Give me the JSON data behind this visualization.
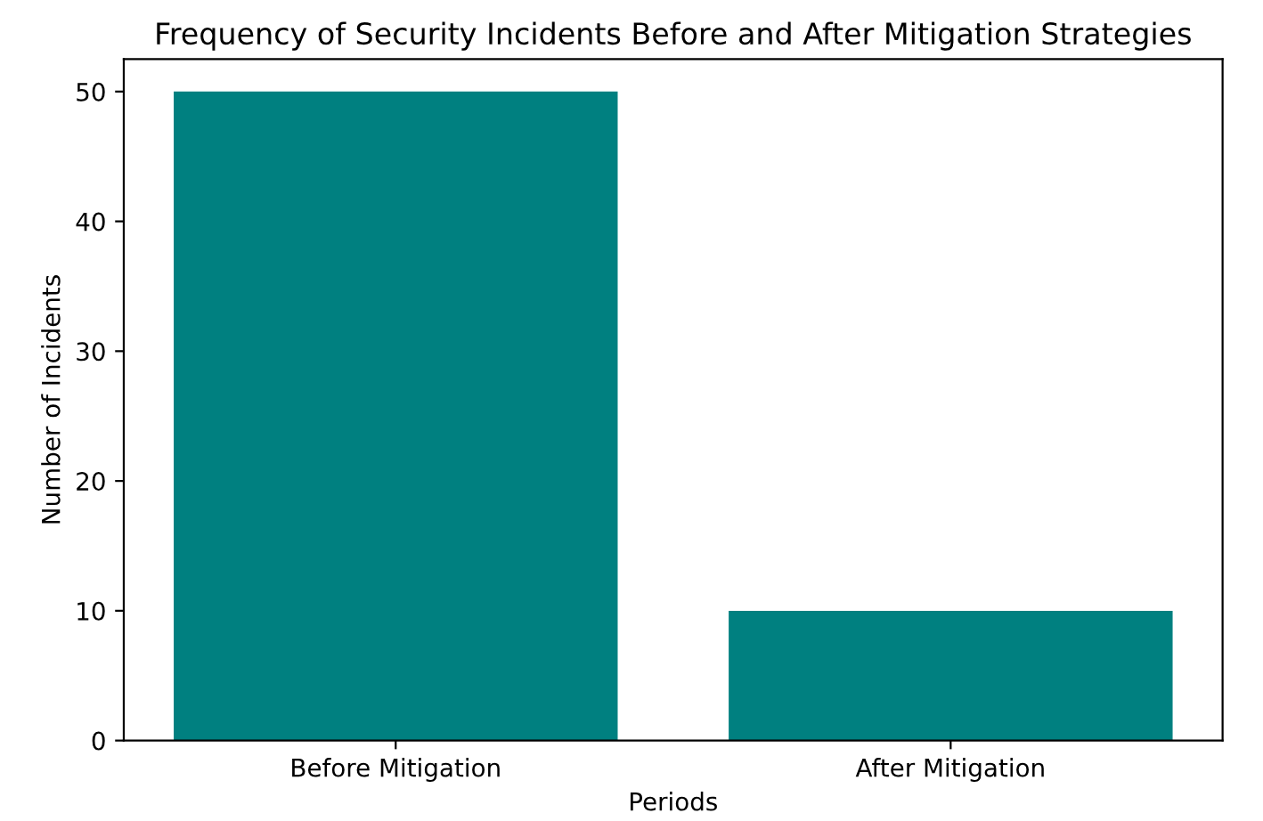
{
  "chart_data": {
    "type": "bar",
    "title": "Frequency of Security Incidents Before and After Mitigation Strategies",
    "xlabel": "Periods",
    "ylabel": "Number of Incidents",
    "categories": [
      "Before Mitigation",
      "After Mitigation"
    ],
    "values": [
      50,
      10
    ],
    "color": "#008080",
    "ylim": [
      0,
      52.5
    ],
    "yticks": [
      0,
      10,
      20,
      30,
      40,
      50
    ],
    "grid": false
  }
}
